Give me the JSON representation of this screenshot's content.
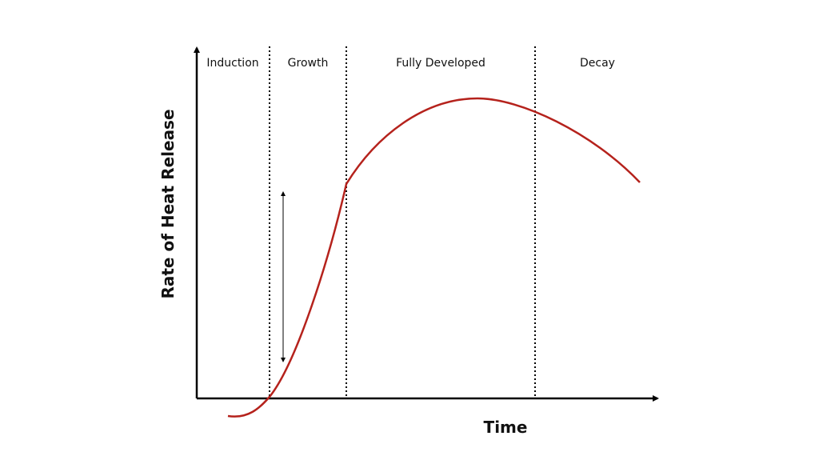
{
  "axes": {
    "y_label": "Rate of Heat Release",
    "x_label": "Time"
  },
  "phases": [
    {
      "label": "Induction"
    },
    {
      "label": "Growth"
    },
    {
      "label": "Fully Developed"
    },
    {
      "label": "Decay"
    }
  ]
}
